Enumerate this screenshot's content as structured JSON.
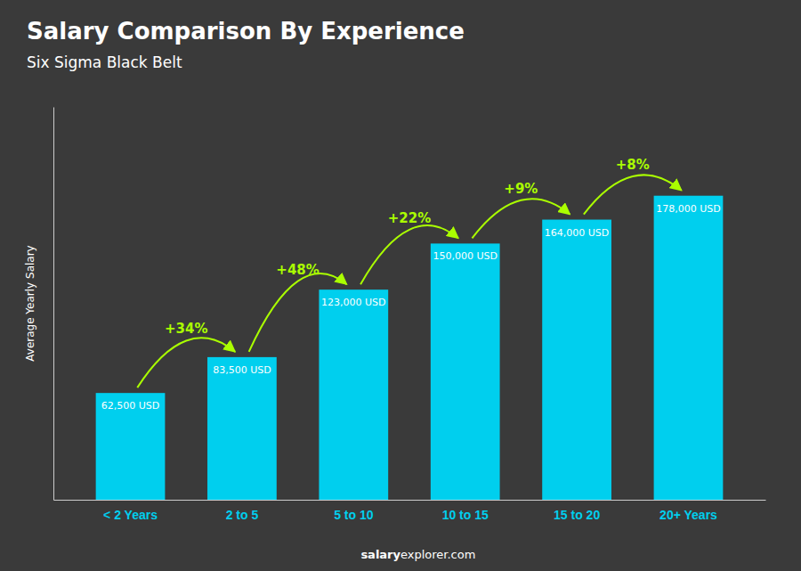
{
  "chart_data": {
    "type": "bar",
    "title": "Salary Comparison By Experience",
    "subtitle": "Six Sigma Black Belt",
    "ylabel": "Average Yearly Salary",
    "categories": [
      "< 2 Years",
      "2 to 5",
      "5 to 10",
      "10 to 15",
      "15 to 20",
      "20+ Years"
    ],
    "values": [
      62500,
      83500,
      123000,
      150000,
      164000,
      178000
    ],
    "value_labels": [
      "62,500 USD",
      "83,500 USD",
      "123,000 USD",
      "150,000 USD",
      "164,000 USD",
      "178,000 USD"
    ],
    "data_labels": true,
    "color": "#00CFEE",
    "ylim": [
      0,
      230000
    ],
    "yticks": [],
    "tick_labels": "x",
    "change_labels": [
      "+34%",
      "+48%",
      "+22%",
      "+9%",
      "+8%"
    ],
    "watermark": [
      "salary",
      "explorer.com"
    ]
  }
}
